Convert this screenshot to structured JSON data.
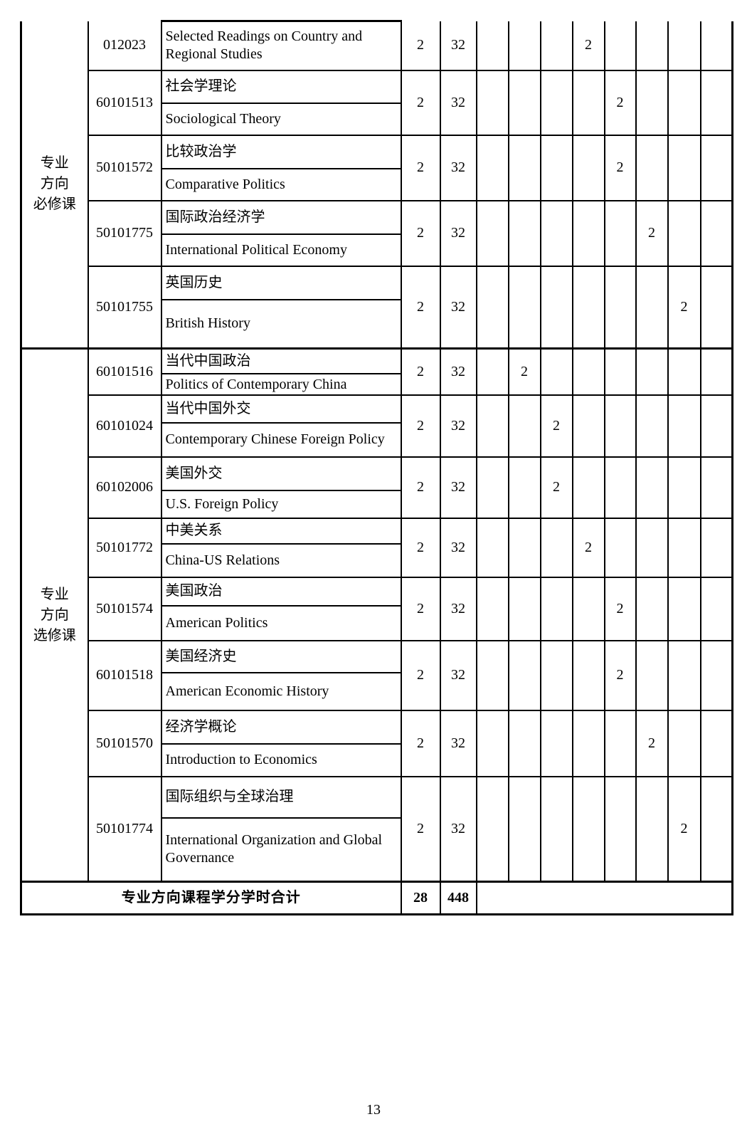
{
  "page": {
    "number": "13"
  },
  "semester_count": 8,
  "sections": [
    {
      "category": "专业方向必修课",
      "category_lines": [
        "专业",
        "方向",
        "必修课"
      ],
      "courses": [
        {
          "code": "012023",
          "name_zh": null,
          "name_en": "Selected Readings on Country and Regional Studies",
          "credits": "2",
          "hours": "32",
          "semester": 4,
          "marks": [
            "",
            "",
            "",
            "2",
            "",
            "",
            "",
            ""
          ]
        },
        {
          "code": "60101513",
          "name_zh": "社会学理论",
          "name_en": "Sociological Theory",
          "credits": "2",
          "hours": "32",
          "semester": 5,
          "marks": [
            "",
            "",
            "",
            "",
            "2",
            "",
            "",
            ""
          ]
        },
        {
          "code": "50101572",
          "name_zh": "比较政治学",
          "name_en": "Comparative Politics",
          "credits": "2",
          "hours": "32",
          "semester": 5,
          "marks": [
            "",
            "",
            "",
            "",
            "2",
            "",
            "",
            ""
          ]
        },
        {
          "code": "50101775",
          "name_zh": "国际政治经济学",
          "name_en": "International Political Economy",
          "credits": "2",
          "hours": "32",
          "semester": 6,
          "marks": [
            "",
            "",
            "",
            "",
            "",
            "2",
            "",
            ""
          ]
        },
        {
          "code": "50101755",
          "name_zh": "英国历史",
          "name_en": "British History",
          "credits": "2",
          "hours": "32",
          "semester": 7,
          "marks": [
            "",
            "",
            "",
            "",
            "",
            "",
            "2",
            ""
          ]
        }
      ]
    },
    {
      "category": "专业方向选修课",
      "category_lines": [
        "专业",
        "方向",
        "选修课"
      ],
      "courses": [
        {
          "code": "60101516",
          "name_zh": "当代中国政治",
          "name_en": "Politics of Contemporary China",
          "credits": "2",
          "hours": "32",
          "semester": 2,
          "marks": [
            "",
            "2",
            "",
            "",
            "",
            "",
            "",
            ""
          ]
        },
        {
          "code": "60101024",
          "name_zh": "当代中国外交",
          "name_en": "Contemporary Chinese Foreign Policy",
          "credits": "2",
          "hours": "32",
          "semester": 3,
          "marks": [
            "",
            "",
            "2",
            "",
            "",
            "",
            "",
            ""
          ]
        },
        {
          "code": "60102006",
          "name_zh": "美国外交",
          "name_en": "U.S. Foreign Policy",
          "credits": "2",
          "hours": "32",
          "semester": 3,
          "marks": [
            "",
            "",
            "2",
            "",
            "",
            "",
            "",
            ""
          ]
        },
        {
          "code": "50101772",
          "name_zh": "中美关系",
          "name_en": "China-US Relations",
          "credits": "2",
          "hours": "32",
          "semester": 4,
          "marks": [
            "",
            "",
            "",
            "2",
            "",
            "",
            "",
            ""
          ]
        },
        {
          "code": "50101574",
          "name_zh": "美国政治",
          "name_en": "American Politics",
          "credits": "2",
          "hours": "32",
          "semester": 5,
          "marks": [
            "",
            "",
            "",
            "",
            "2",
            "",
            "",
            ""
          ]
        },
        {
          "code": "60101518",
          "name_zh": "美国经济史",
          "name_en": "American Economic History",
          "credits": "2",
          "hours": "32",
          "semester": 5,
          "marks": [
            "",
            "",
            "",
            "",
            "2",
            "",
            "",
            ""
          ]
        },
        {
          "code": "50101570",
          "name_zh": "经济学概论",
          "name_en": "Introduction to Economics",
          "credits": "2",
          "hours": "32",
          "semester": 6,
          "marks": [
            "",
            "",
            "",
            "",
            "",
            "2",
            "",
            ""
          ]
        },
        {
          "code": "50101774",
          "name_zh": "国际组织与全球治理",
          "name_en": "International Organization and Global Governance",
          "credits": "2",
          "hours": "32",
          "semester": 7,
          "marks": [
            "",
            "",
            "",
            "",
            "",
            "",
            "2",
            ""
          ]
        }
      ]
    }
  ],
  "totals": {
    "label": "专业方向课程学分学时合计",
    "credits": "28",
    "hours": "448"
  }
}
